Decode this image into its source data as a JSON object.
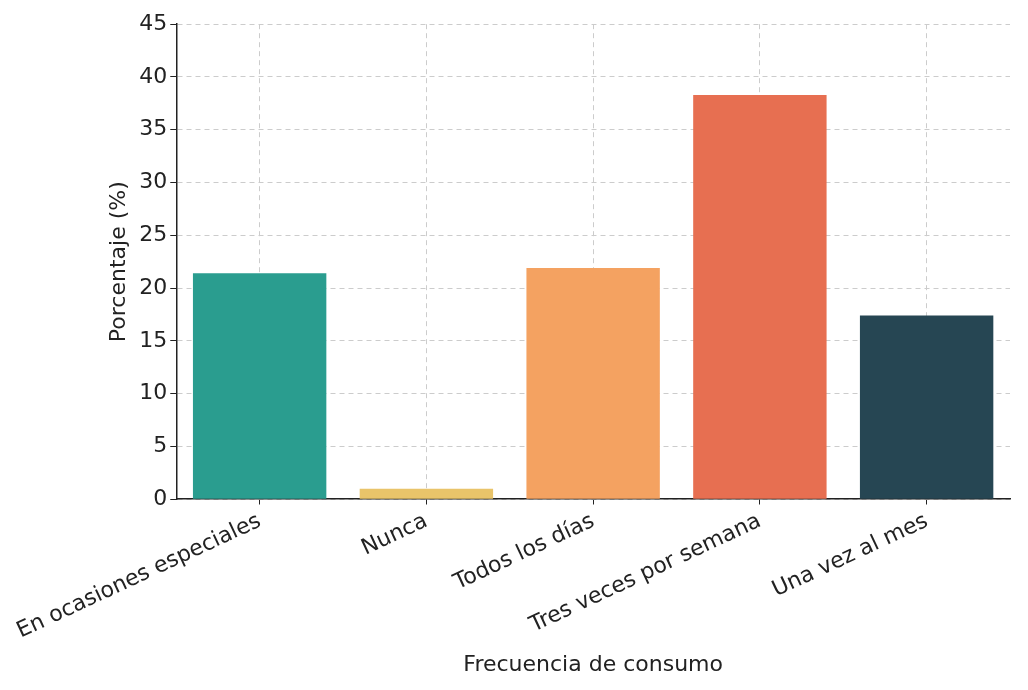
{
  "chart_data": {
    "type": "bar",
    "xlabel": "Frecuencia de consumo",
    "ylabel": "Porcentaje (%)",
    "categories": [
      "En ocasiones especiales",
      "Nunca",
      "Todos los días",
      "Tres veces por semana",
      "Una vez al mes"
    ],
    "values": [
      21.4,
      1.0,
      21.9,
      38.3,
      17.4
    ],
    "colors": [
      "#2a9d8f",
      "#e9c46a",
      "#f4a261",
      "#e76f51",
      "#264653"
    ],
    "ylim": [
      0,
      45
    ],
    "yticks": [
      0,
      5,
      10,
      15,
      20,
      25,
      30,
      35,
      40,
      45
    ],
    "grid": true
  }
}
